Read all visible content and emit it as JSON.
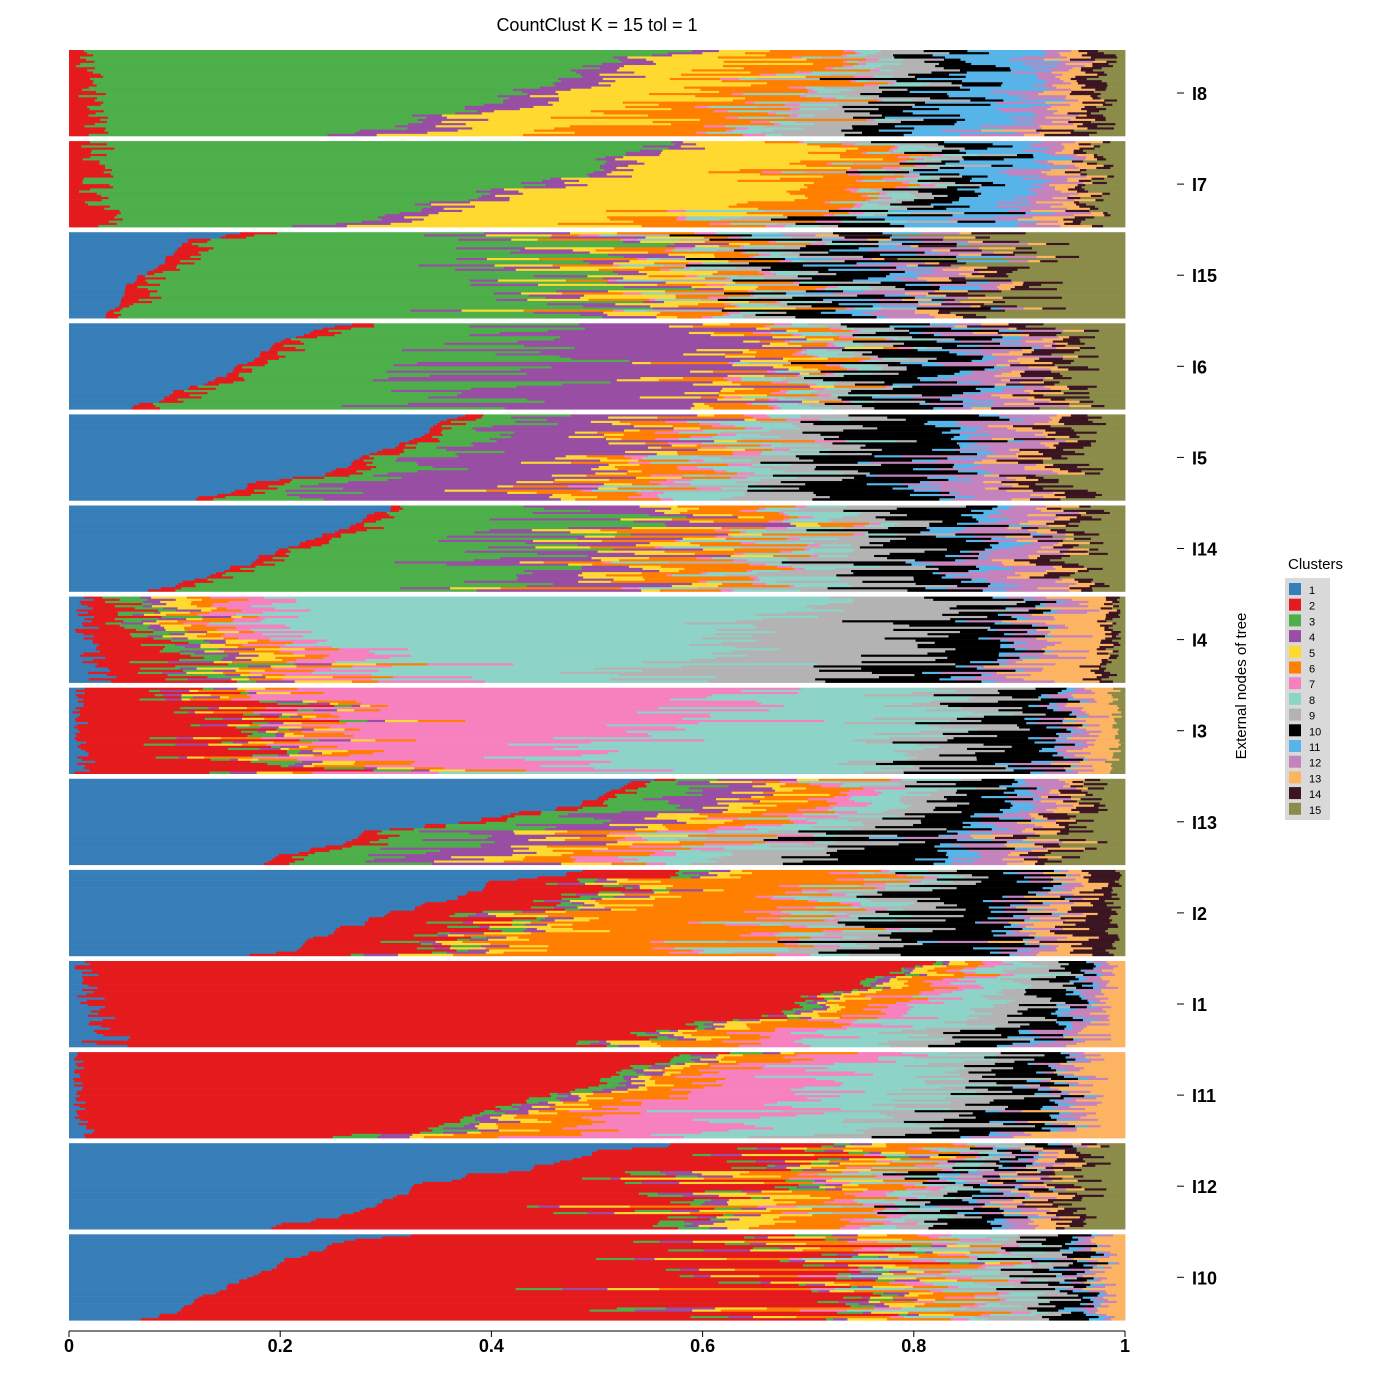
{
  "chart_data": {
    "type": "bar",
    "orientation": "horizontal-stacked-proportion",
    "title": "CountClust K =  15 tol =  1",
    "ylabel": "External nodes of tree",
    "xlim": [
      0,
      1
    ],
    "x_ticks": [
      "0",
      "0.2",
      "0.4",
      "0.6",
      "0.8",
      "1"
    ],
    "legend": {
      "title": "Clusters",
      "position": "right",
      "entries": [
        "1",
        "2",
        "3",
        "4",
        "5",
        "6",
        "7",
        "8",
        "9",
        "10",
        "11",
        "12",
        "13",
        "14",
        "15"
      ]
    },
    "cluster_colors": [
      "#377EB8",
      "#E41A1C",
      "#4DAF4A",
      "#984EA3",
      "#FFD92F",
      "#FF7F00",
      "#F781BF",
      "#8DD3C7",
      "#B3B3B3",
      "#000000",
      "#56B4E9",
      "#C583BD",
      "#FDB462",
      "#3B1521",
      "#8C8C4A"
    ],
    "categories": [
      "I8",
      "I7",
      "I15",
      "I6",
      "I5",
      "I14",
      "I4",
      "I3",
      "I13",
      "I2",
      "I1",
      "I11",
      "I12",
      "I10"
    ],
    "groups": [
      {
        "name": "I8",
        "mean_proportions": [
          0.0,
          0.02,
          0.42,
          0.04,
          0.12,
          0.1,
          0.01,
          0.03,
          0.05,
          0.05,
          0.07,
          0.03,
          0.02,
          0.02,
          0.02
        ]
      },
      {
        "name": "I7",
        "mean_proportions": [
          0.0,
          0.03,
          0.4,
          0.03,
          0.2,
          0.07,
          0.01,
          0.03,
          0.03,
          0.05,
          0.06,
          0.03,
          0.02,
          0.01,
          0.03
        ]
      },
      {
        "name": "I15",
        "mean_proportions": [
          0.08,
          0.02,
          0.35,
          0.05,
          0.06,
          0.05,
          0.01,
          0.03,
          0.04,
          0.07,
          0.03,
          0.04,
          0.02,
          0.03,
          0.12
        ]
      },
      {
        "name": "I6",
        "mean_proportions": [
          0.16,
          0.02,
          0.22,
          0.22,
          0.03,
          0.04,
          0.01,
          0.03,
          0.03,
          0.07,
          0.02,
          0.05,
          0.02,
          0.03,
          0.05
        ]
      },
      {
        "name": "I5",
        "mean_proportions": [
          0.26,
          0.02,
          0.06,
          0.16,
          0.03,
          0.06,
          0.02,
          0.05,
          0.06,
          0.1,
          0.02,
          0.06,
          0.02,
          0.03,
          0.05
        ]
      },
      {
        "name": "I14",
        "mean_proportions": [
          0.2,
          0.02,
          0.22,
          0.1,
          0.04,
          0.07,
          0.01,
          0.05,
          0.07,
          0.07,
          0.02,
          0.05,
          0.02,
          0.02,
          0.04
        ]
      },
      {
        "name": "I4",
        "mean_proportions": [
          0.02,
          0.06,
          0.03,
          0.02,
          0.03,
          0.03,
          0.05,
          0.43,
          0.15,
          0.07,
          0.01,
          0.03,
          0.05,
          0.01,
          0.01
        ]
      },
      {
        "name": "I3",
        "mean_proportions": [
          0.01,
          0.15,
          0.02,
          0.02,
          0.02,
          0.03,
          0.3,
          0.25,
          0.06,
          0.07,
          0.01,
          0.02,
          0.03,
          0.0,
          0.01
        ]
      },
      {
        "name": "I13",
        "mean_proportions": [
          0.4,
          0.02,
          0.07,
          0.07,
          0.04,
          0.05,
          0.03,
          0.05,
          0.06,
          0.08,
          0.02,
          0.03,
          0.02,
          0.02,
          0.04
        ]
      },
      {
        "name": "I2",
        "mean_proportions": [
          0.35,
          0.1,
          0.02,
          0.02,
          0.03,
          0.18,
          0.02,
          0.04,
          0.04,
          0.1,
          0.01,
          0.02,
          0.03,
          0.03,
          0.01
        ]
      },
      {
        "name": "I1",
        "mean_proportions": [
          0.02,
          0.7,
          0.01,
          0.01,
          0.02,
          0.04,
          0.03,
          0.05,
          0.04,
          0.03,
          0.01,
          0.02,
          0.02,
          0.0,
          0.0
        ]
      },
      {
        "name": "I11",
        "mean_proportions": [
          0.01,
          0.45,
          0.02,
          0.02,
          0.02,
          0.06,
          0.12,
          0.1,
          0.06,
          0.06,
          0.01,
          0.02,
          0.05,
          0.0,
          0.0
        ]
      },
      {
        "name": "I12",
        "mean_proportions": [
          0.42,
          0.24,
          0.02,
          0.02,
          0.04,
          0.06,
          0.02,
          0.03,
          0.02,
          0.04,
          0.01,
          0.02,
          0.02,
          0.02,
          0.04
        ]
      },
      {
        "name": "I10",
        "mean_proportions": [
          0.18,
          0.52,
          0.02,
          0.02,
          0.03,
          0.06,
          0.02,
          0.04,
          0.04,
          0.03,
          0.01,
          0.01,
          0.02,
          0.0,
          0.0
        ]
      }
    ],
    "grid": false
  }
}
